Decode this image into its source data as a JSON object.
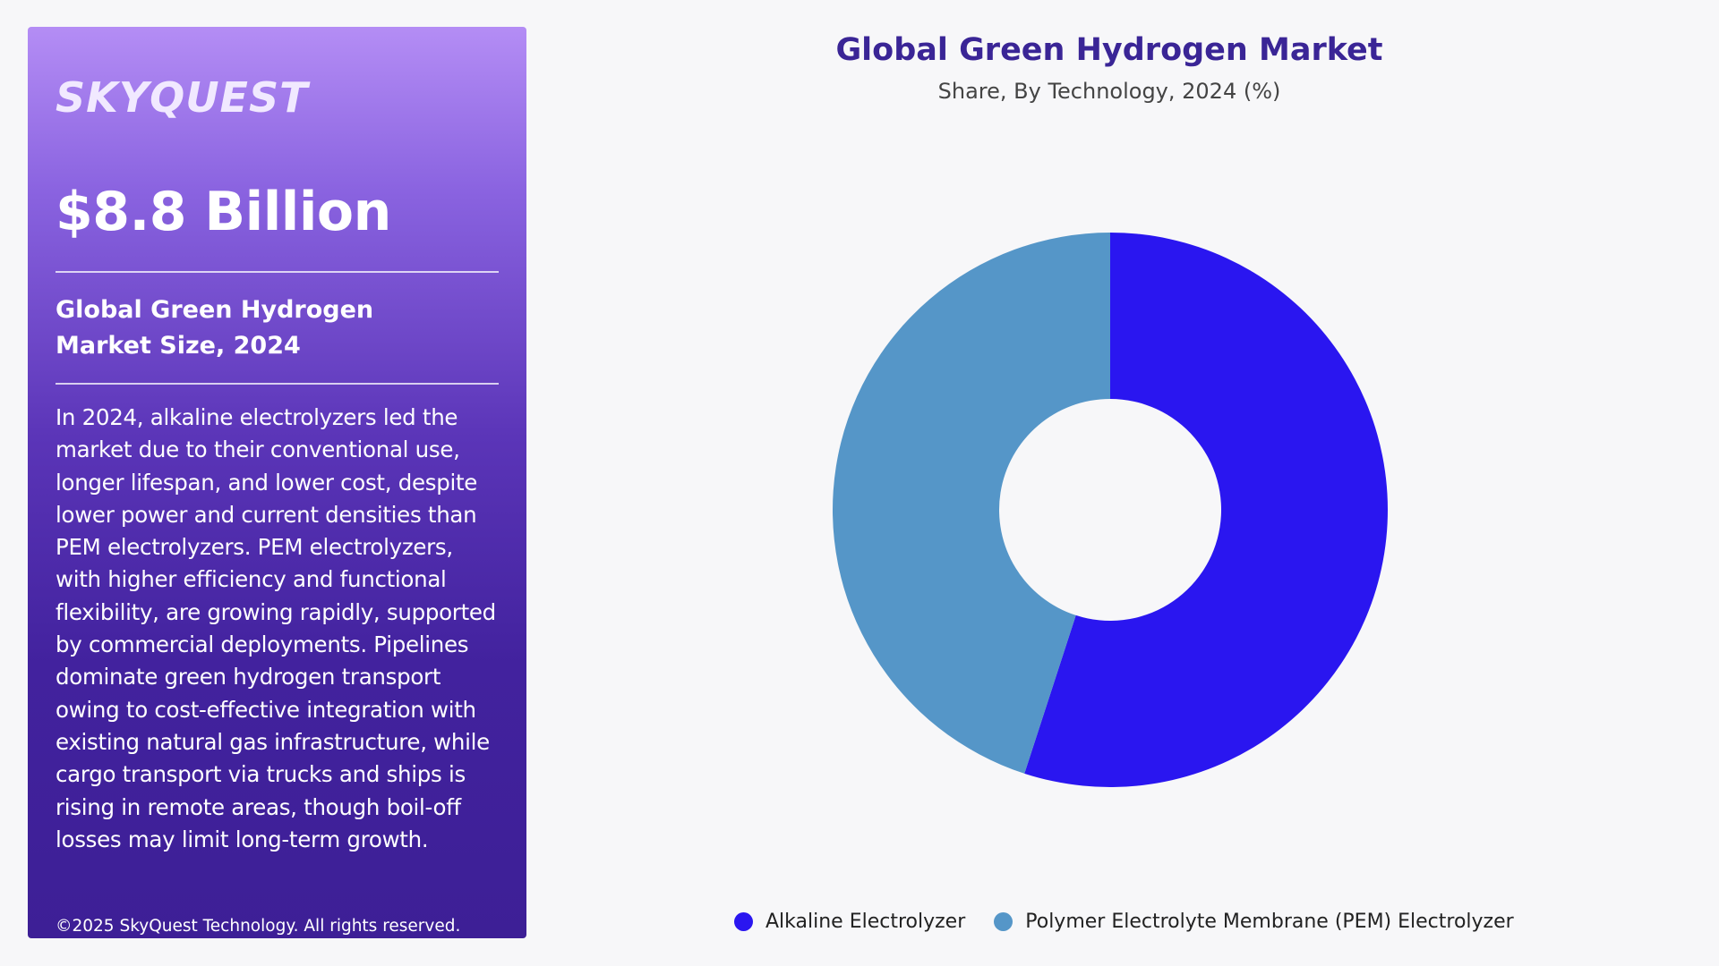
{
  "panel": {
    "logo": "SKYQUEST",
    "market_size": "$8.8 Billion",
    "size_label": "Global Green Hydrogen Market Size, 2024",
    "description": "In 2024, alkaline electrolyzers led the market due to their conventional use, longer lifespan, and lower cost, despite lower power and current densities than PEM electrolyzers. PEM electrolyzers, with higher efficiency and functional flexibility, are growing rapidly, supported by commercial deployments. Pipelines dominate green hydrogen transport owing to cost-effective integration with existing natural gas infrastructure, while cargo transport via trucks and ships is rising in remote areas, though boil-off losses may limit long-term growth.",
    "copyright": "©2025 SkyQuest Technology. All rights reserved."
  },
  "chart_data": {
    "type": "pie",
    "donut": true,
    "title": "Global Green Hydrogen Market",
    "subtitle": "Share, By Technology, 2024 (%)",
    "legend_position": "bottom",
    "categories": [
      "Alkaline Electrolyzer",
      "Polymer Electrolyte Membrane (PEM) Electrolyzer"
    ],
    "values": [
      55,
      45
    ],
    "colors": [
      "#2a16f0",
      "#5596c8"
    ]
  }
}
